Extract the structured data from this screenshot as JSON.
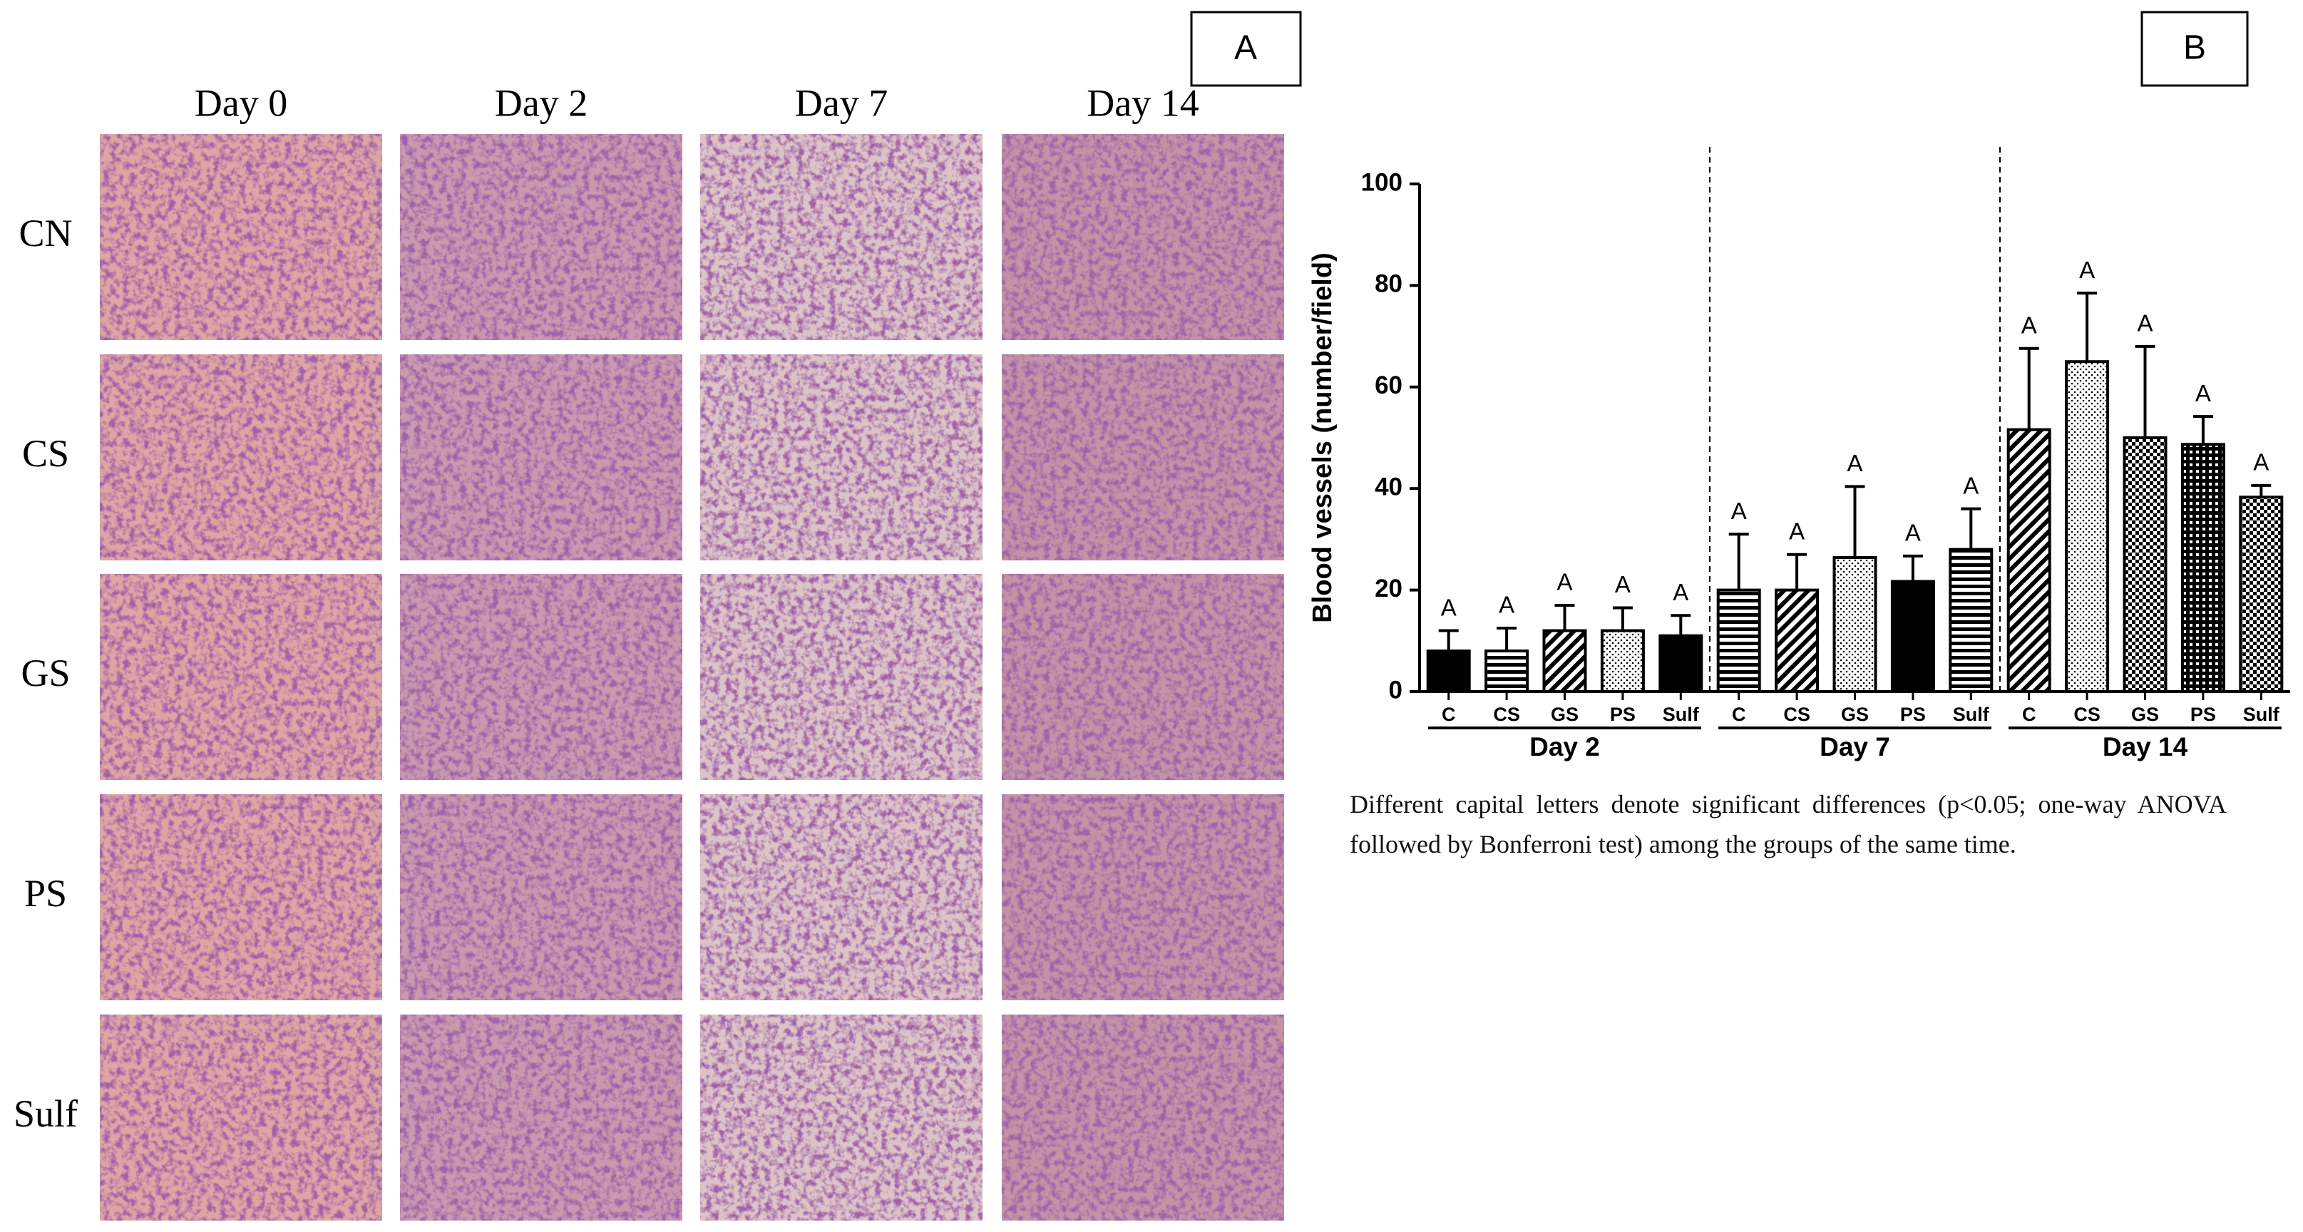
{
  "panel_a": {
    "label": "A",
    "columns": [
      "Day 0",
      "Day 2",
      "Day 7",
      "Day 14"
    ],
    "rows": [
      "CN",
      "CS",
      "GS",
      "PS",
      "Sulf"
    ]
  },
  "panel_b": {
    "label": "B"
  },
  "chart_data": {
    "type": "bar",
    "y_label": "Blood vessels (number/field)",
    "ylim": [
      0,
      100
    ],
    "yticks": [
      0,
      20,
      40,
      60,
      80,
      100
    ],
    "grid": false,
    "color": "#000000",
    "groups": [
      {
        "label": "Day 2",
        "categories": [
          "C",
          "CS",
          "GS",
          "PS",
          "Sulf"
        ],
        "values": [
          8,
          8,
          12,
          12,
          11
        ],
        "errors": [
          4,
          4.5,
          5,
          4.5,
          4
        ],
        "significance": [
          "A",
          "A",
          "A",
          "A",
          "A"
        ],
        "patterns": [
          "solid",
          "hlines",
          "diag",
          "dots",
          "solid"
        ]
      },
      {
        "label": "Day 7",
        "categories": [
          "C",
          "CS",
          "GS",
          "PS",
          "Sulf"
        ],
        "values": [
          20,
          20,
          26.4,
          21.7,
          28
        ],
        "errors": [
          11,
          7,
          14,
          5,
          8
        ],
        "significance": [
          "A",
          "A",
          "A",
          "A",
          "A"
        ],
        "patterns": [
          "hlines",
          "diag",
          "dots",
          "solid",
          "hlines"
        ]
      },
      {
        "label": "Day 14",
        "categories": [
          "C",
          "CS",
          "GS",
          "PS",
          "Sulf"
        ],
        "values": [
          51.6,
          65,
          50,
          48.7,
          38.3
        ],
        "errors": [
          16,
          13.5,
          18,
          5.5,
          2.3
        ],
        "significance": [
          "A",
          "A",
          "A",
          "A",
          "A"
        ],
        "patterns": [
          "diag",
          "dots",
          "checks",
          "grid",
          "checks"
        ]
      }
    ]
  },
  "caption": "Different capital letters denote significant differences (p<0.05; one-way ANOVA followed by Bonferroni test) among the groups of the same time."
}
